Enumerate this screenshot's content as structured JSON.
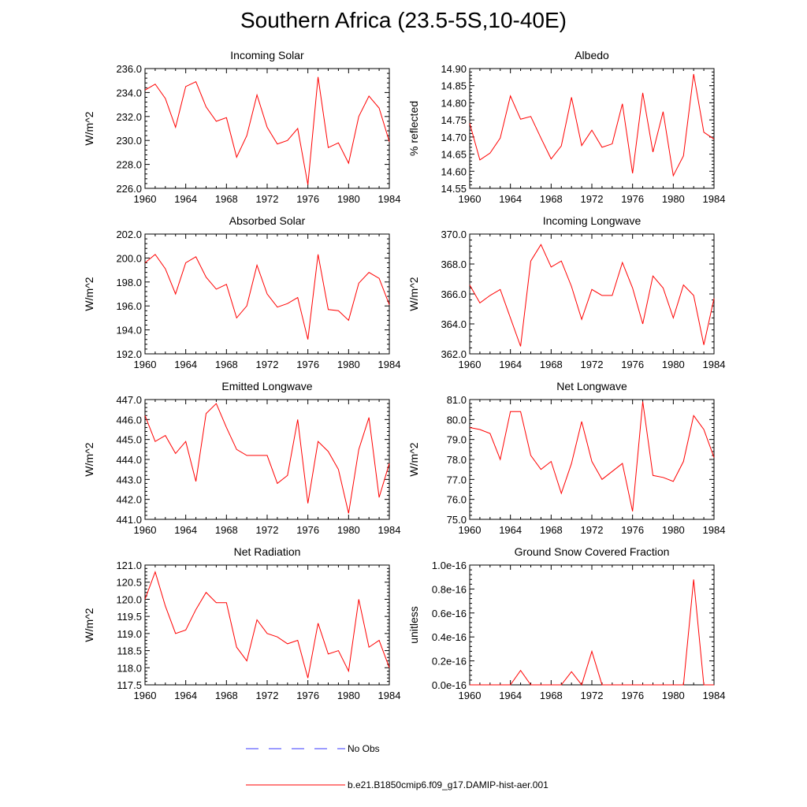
{
  "title": "Southern Africa (23.5-5S,10-40E)",
  "colors": {
    "model": "#ff0000",
    "obs": "#3a3aff",
    "axis": "#000000"
  },
  "legend": {
    "obs_label": "No Obs",
    "model_label": "b.e21.B1850cmip6.f09_g17.DAMIP-hist-aer.001"
  },
  "chart_data": [
    {
      "type": "line",
      "title": "Incoming Solar",
      "ylabel": "W/m^2",
      "xlim": [
        1960,
        1984
      ],
      "ylim": [
        226.0,
        236.0
      ],
      "xticks": [
        "1960",
        "1964",
        "1968",
        "1972",
        "1976",
        "1980",
        "1984"
      ],
      "yticks": [
        "226.0",
        "228.0",
        "230.0",
        "232.0",
        "234.0",
        "236.0"
      ],
      "x": [
        1960,
        1961,
        1962,
        1963,
        1964,
        1965,
        1966,
        1967,
        1968,
        1969,
        1970,
        1971,
        1972,
        1973,
        1974,
        1975,
        1976,
        1977,
        1978,
        1979,
        1980,
        1981,
        1982,
        1983,
        1984
      ],
      "series": [
        {
          "name": "b.e21.B1850cmip6.f09_g17.DAMIP-hist-aer.001",
          "values": [
            234.2,
            234.7,
            233.5,
            231.1,
            234.5,
            234.9,
            232.8,
            231.6,
            231.9,
            228.6,
            230.4,
            233.8,
            231.1,
            229.7,
            230.0,
            231.0,
            226.3,
            235.3,
            229.4,
            229.8,
            228.1,
            232.0,
            233.7,
            232.7,
            229.9
          ]
        }
      ]
    },
    {
      "type": "line",
      "title": "Albedo",
      "ylabel": "% reflected",
      "xlim": [
        1960,
        1984
      ],
      "ylim": [
        14.55,
        14.9
      ],
      "xticks": [
        "1960",
        "1964",
        "1968",
        "1972",
        "1976",
        "1980",
        "1984"
      ],
      "yticks": [
        "14.55",
        "14.60",
        "14.65",
        "14.70",
        "14.75",
        "14.80",
        "14.85",
        "14.90"
      ],
      "x": [
        1960,
        1961,
        1962,
        1963,
        1964,
        1965,
        1966,
        1967,
        1968,
        1969,
        1970,
        1971,
        1972,
        1973,
        1974,
        1975,
        1976,
        1977,
        1978,
        1979,
        1980,
        1981,
        1982,
        1983,
        1984
      ],
      "series": [
        {
          "name": "b.e21.B1850cmip6.f09_g17.DAMIP-hist-aer.001",
          "values": [
            14.74,
            14.633,
            14.653,
            14.697,
            14.82,
            14.752,
            14.76,
            14.697,
            14.636,
            14.674,
            14.816,
            14.675,
            14.72,
            14.67,
            14.68,
            14.797,
            14.594,
            14.829,
            14.656,
            14.774,
            14.587,
            14.645,
            14.884,
            14.714,
            14.694
          ]
        }
      ]
    },
    {
      "type": "line",
      "title": "Absorbed Solar",
      "ylabel": "W/m^2",
      "xlim": [
        1960,
        1984
      ],
      "ylim": [
        192.0,
        202.0
      ],
      "xticks": [
        "1960",
        "1964",
        "1968",
        "1972",
        "1976",
        "1980",
        "1984"
      ],
      "yticks": [
        "192.0",
        "194.0",
        "196.0",
        "198.0",
        "200.0",
        "202.0"
      ],
      "x": [
        1960,
        1961,
        1962,
        1963,
        1964,
        1965,
        1966,
        1967,
        1968,
        1969,
        1970,
        1971,
        1972,
        1973,
        1974,
        1975,
        1976,
        1977,
        1978,
        1979,
        1980,
        1981,
        1982,
        1983,
        1984
      ],
      "series": [
        {
          "name": "b.e21.B1850cmip6.f09_g17.DAMIP-hist-aer.001",
          "values": [
            199.6,
            200.3,
            199.1,
            197.0,
            199.6,
            200.1,
            198.4,
            197.4,
            197.8,
            195.0,
            196.0,
            199.4,
            197.0,
            195.9,
            196.2,
            196.7,
            193.2,
            200.3,
            195.7,
            195.6,
            194.8,
            197.9,
            198.8,
            198.3,
            196.1
          ]
        }
      ]
    },
    {
      "type": "line",
      "title": "Incoming Longwave",
      "ylabel": "W/m^2",
      "xlim": [
        1960,
        1984
      ],
      "ylim": [
        362.0,
        370.0
      ],
      "xticks": [
        "1960",
        "1964",
        "1968",
        "1972",
        "1976",
        "1980",
        "1984"
      ],
      "yticks": [
        "362.0",
        "364.0",
        "366.0",
        "368.0",
        "370.0"
      ],
      "x": [
        1960,
        1961,
        1962,
        1963,
        1964,
        1965,
        1966,
        1967,
        1968,
        1969,
        1970,
        1971,
        1972,
        1973,
        1974,
        1975,
        1976,
        1977,
        1978,
        1979,
        1980,
        1981,
        1982,
        1983,
        1984
      ],
      "series": [
        {
          "name": "b.e21.B1850cmip6.f09_g17.DAMIP-hist-aer.001",
          "values": [
            366.6,
            365.4,
            365.9,
            366.3,
            364.4,
            362.5,
            368.2,
            369.3,
            367.8,
            368.2,
            366.5,
            364.3,
            366.3,
            365.9,
            365.9,
            368.1,
            366.4,
            364.0,
            367.2,
            366.4,
            364.4,
            366.6,
            365.9,
            362.6,
            365.7
          ]
        }
      ]
    },
    {
      "type": "line",
      "title": "Emitted Longwave",
      "ylabel": "W/m^2",
      "xlim": [
        1960,
        1984
      ],
      "ylim": [
        441.0,
        447.0
      ],
      "xticks": [
        "1960",
        "1964",
        "1968",
        "1972",
        "1976",
        "1980",
        "1984"
      ],
      "yticks": [
        "441.0",
        "442.0",
        "443.0",
        "444.0",
        "445.0",
        "446.0",
        "447.0"
      ],
      "x": [
        1960,
        1961,
        1962,
        1963,
        1964,
        1965,
        1966,
        1967,
        1968,
        1969,
        1970,
        1971,
        1972,
        1973,
        1974,
        1975,
        1976,
        1977,
        1978,
        1979,
        1980,
        1981,
        1982,
        1983,
        1984
      ],
      "series": [
        {
          "name": "b.e21.B1850cmip6.f09_g17.DAMIP-hist-aer.001",
          "values": [
            446.2,
            444.9,
            445.2,
            444.3,
            444.9,
            442.9,
            446.3,
            446.8,
            445.6,
            444.5,
            444.2,
            444.2,
            444.2,
            442.8,
            443.2,
            446.0,
            441.8,
            444.9,
            444.4,
            443.5,
            441.3,
            444.5,
            446.1,
            442.1,
            443.8
          ]
        }
      ]
    },
    {
      "type": "line",
      "title": "Net Longwave",
      "ylabel": "W/m^2",
      "xlim": [
        1960,
        1984
      ],
      "ylim": [
        75.0,
        81.0
      ],
      "xticks": [
        "1960",
        "1964",
        "1968",
        "1972",
        "1976",
        "1980",
        "1984"
      ],
      "yticks": [
        "75.0",
        "76.0",
        "77.0",
        "78.0",
        "79.0",
        "80.0",
        "81.0"
      ],
      "x": [
        1960,
        1961,
        1962,
        1963,
        1964,
        1965,
        1966,
        1967,
        1968,
        1969,
        1970,
        1971,
        1972,
        1973,
        1974,
        1975,
        1976,
        1977,
        1978,
        1979,
        1980,
        1981,
        1982,
        1983,
        1984
      ],
      "series": [
        {
          "name": "b.e21.B1850cmip6.f09_g17.DAMIP-hist-aer.001",
          "values": [
            79.6,
            79.5,
            79.3,
            78.0,
            80.4,
            80.4,
            78.2,
            77.5,
            77.9,
            76.3,
            77.8,
            79.9,
            77.9,
            77.0,
            77.4,
            77.8,
            75.4,
            80.9,
            77.2,
            77.1,
            76.9,
            77.9,
            80.2,
            79.5,
            78.1
          ]
        }
      ]
    },
    {
      "type": "line",
      "title": "Net Radiation",
      "ylabel": "W/m^2",
      "xlim": [
        1960,
        1984
      ],
      "ylim": [
        117.5,
        121.0
      ],
      "xticks": [
        "1960",
        "1964",
        "1968",
        "1972",
        "1976",
        "1980",
        "1984"
      ],
      "yticks": [
        "117.5",
        "118.0",
        "118.5",
        "119.0",
        "119.5",
        "120.0",
        "120.5",
        "121.0"
      ],
      "x": [
        1960,
        1961,
        1962,
        1963,
        1964,
        1965,
        1966,
        1967,
        1968,
        1969,
        1970,
        1971,
        1972,
        1973,
        1974,
        1975,
        1976,
        1977,
        1978,
        1979,
        1980,
        1981,
        1982,
        1983,
        1984
      ],
      "series": [
        {
          "name": "b.e21.B1850cmip6.f09_g17.DAMIP-hist-aer.001",
          "values": [
            120.0,
            120.8,
            119.8,
            119.0,
            119.1,
            119.7,
            120.2,
            119.9,
            119.9,
            118.6,
            118.2,
            119.4,
            119.0,
            118.9,
            118.7,
            118.8,
            117.7,
            119.3,
            118.4,
            118.5,
            117.9,
            120.0,
            118.6,
            118.8,
            118.0
          ]
        }
      ]
    },
    {
      "type": "line",
      "title": "Ground Snow Covered Fraction",
      "ylabel": "unitless",
      "xlim": [
        1960,
        1984
      ],
      "ylim": [
        0.0,
        1e-16
      ],
      "xticks": [
        "1960",
        "1964",
        "1968",
        "1972",
        "1976",
        "1980",
        "1984"
      ],
      "yticks": [
        "0.0e-16",
        "0.2e-16",
        "0.4e-16",
        "0.6e-16",
        "0.8e-16",
        "1.0e-16"
      ],
      "x": [
        1960,
        1961,
        1962,
        1963,
        1964,
        1965,
        1966,
        1967,
        1968,
        1969,
        1970,
        1971,
        1972,
        1973,
        1974,
        1975,
        1976,
        1977,
        1978,
        1979,
        1980,
        1981,
        1982,
        1983,
        1984
      ],
      "series": [
        {
          "name": "b.e21.B1850cmip6.f09_g17.DAMIP-hist-aer.001",
          "values": [
            0,
            0,
            0,
            0,
            0,
            1.2e-17,
            0,
            0,
            0,
            0,
            1.1e-17,
            0,
            2.8e-17,
            0,
            0,
            0,
            0,
            0,
            0,
            0,
            0,
            0,
            8.8e-17,
            0,
            0
          ]
        }
      ]
    }
  ]
}
